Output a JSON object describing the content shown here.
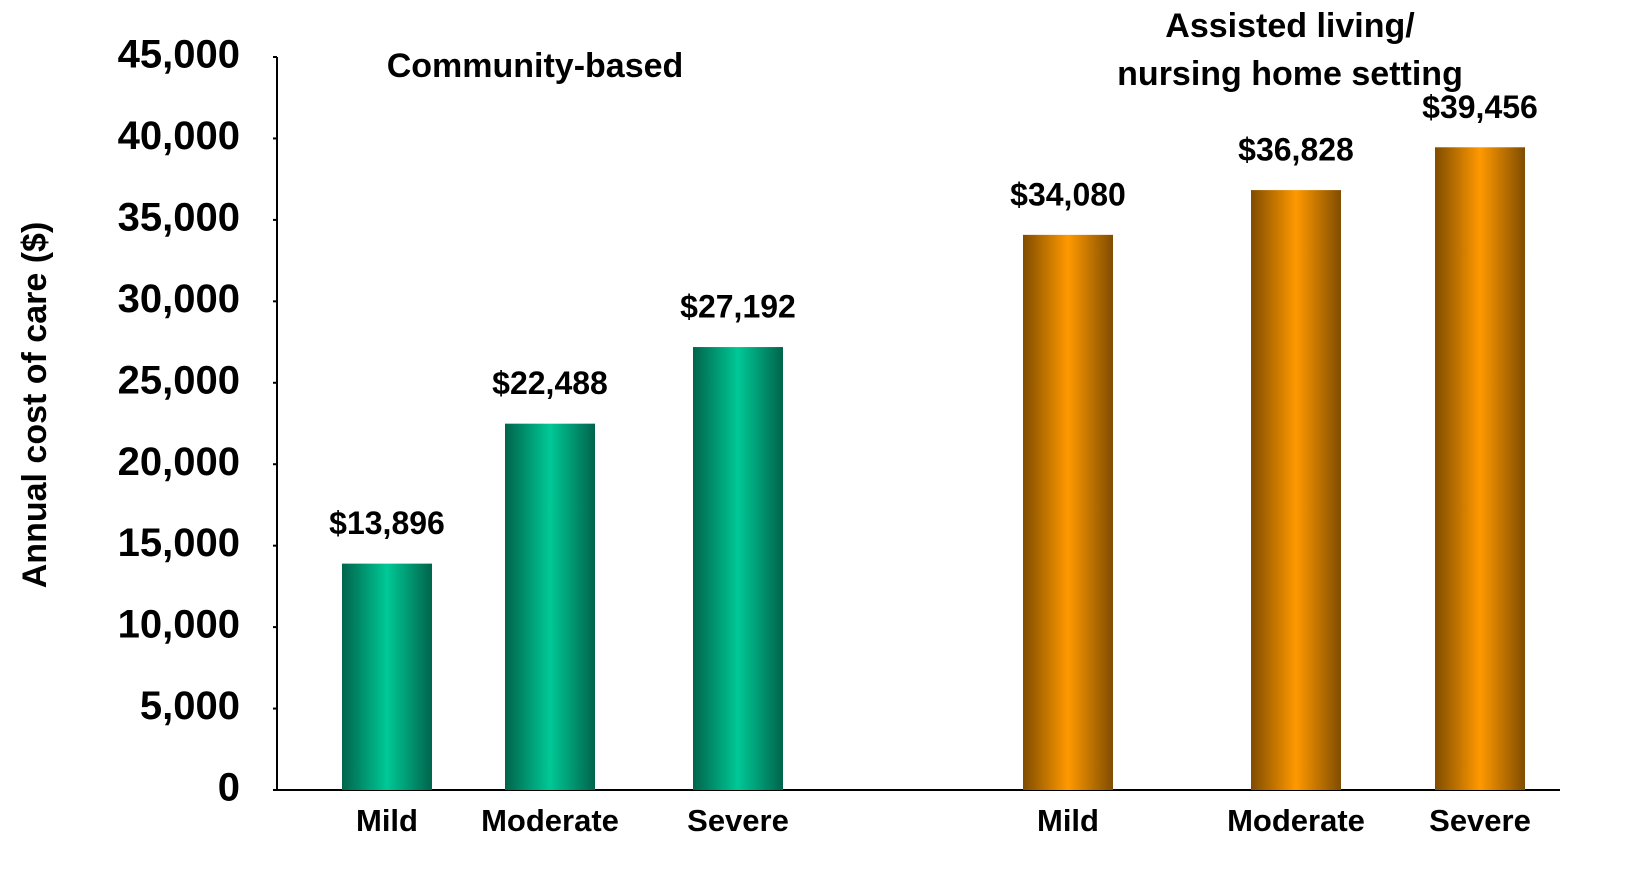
{
  "chart_data": {
    "type": "bar",
    "y_label": "Annual cost of care ($)",
    "ylim": [
      0,
      45000
    ],
    "yticks": [
      0,
      {
        "value": 5000,
        "label": "5,000"
      },
      {
        "value": 10000,
        "label": "10,000"
      },
      {
        "value": 15000,
        "label": "15,000"
      },
      {
        "value": 20000,
        "label": "20,000"
      },
      {
        "value": 25000,
        "label": "25,000"
      },
      {
        "value": 30000,
        "label": "30,000"
      },
      {
        "value": 35000,
        "label": "35,000"
      },
      {
        "value": 40000,
        "label": "40,000"
      },
      {
        "value": 45000,
        "label": "45,000"
      }
    ],
    "groups": [
      {
        "name": [
          "Community-based"
        ],
        "color": "#00c896",
        "categories": [
          "Mild",
          "Moderate",
          "Severe"
        ],
        "values": [
          13896,
          22488,
          27192
        ],
        "value_labels": [
          "$13,896",
          "$22,488",
          "$27,192"
        ]
      },
      {
        "name": [
          "Assisted living/",
          "nursing home setting"
        ],
        "color": "#ff9900",
        "categories": [
          "Mild",
          "Moderate",
          "Severe"
        ],
        "values": [
          34080,
          36828,
          39456
        ],
        "value_labels": [
          "$34,080",
          "$36,828",
          "$39,456"
        ]
      }
    ]
  }
}
